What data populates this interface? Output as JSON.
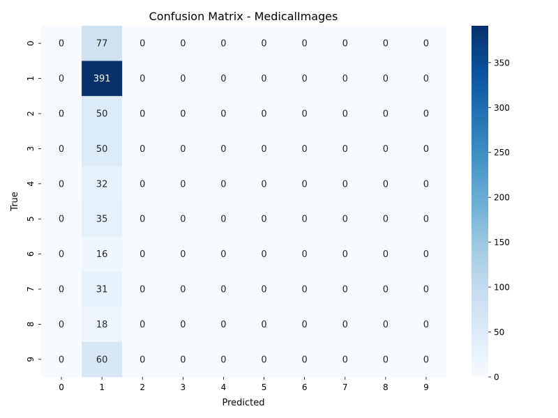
{
  "chart_data": {
    "type": "heatmap",
    "title": "Confusion Matrix - MedicalImages",
    "xlabel": "Predicted",
    "ylabel": "True",
    "x_categories": [
      "0",
      "1",
      "2",
      "3",
      "4",
      "5",
      "6",
      "7",
      "8",
      "9"
    ],
    "y_categories": [
      "0",
      "1",
      "2",
      "3",
      "4",
      "5",
      "6",
      "7",
      "8",
      "9"
    ],
    "values": [
      [
        0,
        77,
        0,
        0,
        0,
        0,
        0,
        0,
        0,
        0
      ],
      [
        0,
        391,
        0,
        0,
        0,
        0,
        0,
        0,
        0,
        0
      ],
      [
        0,
        50,
        0,
        0,
        0,
        0,
        0,
        0,
        0,
        0
      ],
      [
        0,
        50,
        0,
        0,
        0,
        0,
        0,
        0,
        0,
        0
      ],
      [
        0,
        32,
        0,
        0,
        0,
        0,
        0,
        0,
        0,
        0
      ],
      [
        0,
        35,
        0,
        0,
        0,
        0,
        0,
        0,
        0,
        0
      ],
      [
        0,
        16,
        0,
        0,
        0,
        0,
        0,
        0,
        0,
        0
      ],
      [
        0,
        31,
        0,
        0,
        0,
        0,
        0,
        0,
        0,
        0
      ],
      [
        0,
        18,
        0,
        0,
        0,
        0,
        0,
        0,
        0,
        0
      ],
      [
        0,
        60,
        0,
        0,
        0,
        0,
        0,
        0,
        0,
        0
      ]
    ],
    "colormap": "Blues",
    "colors": {
      "low": "#f7fbff",
      "high": "#08306b",
      "text_dark": "#262626",
      "text_light": "#ffffff"
    },
    "colorbar": {
      "range": [
        0,
        391
      ],
      "ticks": [
        0,
        50,
        100,
        150,
        200,
        250,
        300,
        350
      ],
      "tick_labels": [
        "0",
        "50",
        "100",
        "150",
        "200",
        "250",
        "300",
        "350"
      ]
    },
    "annotations": "cell values shown in each cell",
    "grid": false
  }
}
